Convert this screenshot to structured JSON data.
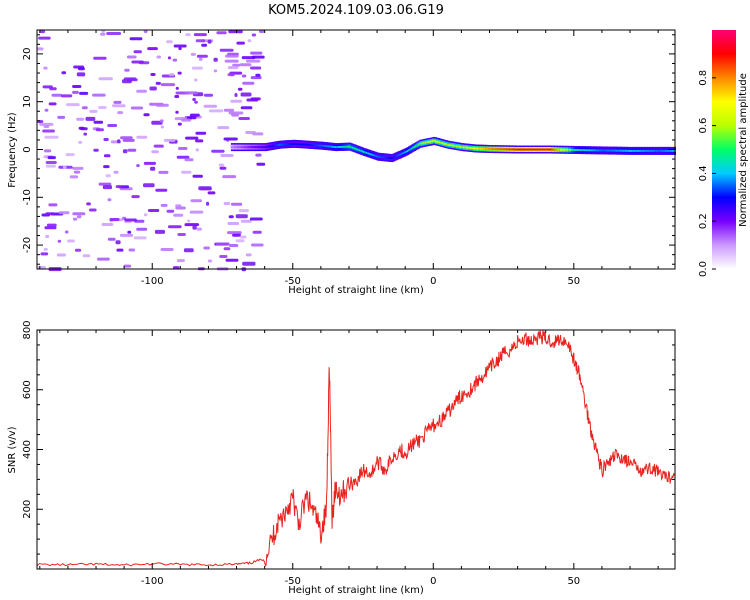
{
  "figure_title": "KOM5.2024.109.03.06.G19",
  "chart_data": [
    {
      "type": "heatmap",
      "title": "",
      "xlabel": "Height of straight line (km)",
      "ylabel": "Frequency (Hz)",
      "xlim": [
        -141,
        86
      ],
      "ylim": [
        -25,
        25
      ],
      "x_ticks": [
        -100,
        -50,
        0,
        50
      ],
      "y_ticks": [
        -20,
        -10,
        0,
        10,
        20
      ],
      "colorbar": {
        "label": "Normalized spectral amplitude",
        "range": [
          0.0,
          1.0
        ],
        "ticks": [
          "0.0",
          "0.2",
          "0.4",
          "0.6",
          "0.8"
        ],
        "colormap": [
          "#ffffff",
          "#cc99ff",
          "#7700ff",
          "#0000ff",
          "#00ccff",
          "#00ff66",
          "#bbff00",
          "#ffff00",
          "#ff8800",
          "#ff0000",
          "#ff0077"
        ]
      },
      "noise_region_x": [
        -141,
        -62
      ],
      "noise_level": 0.15,
      "ridge": {
        "x": [
          -72,
          -60,
          -55,
          -50,
          -45,
          -40,
          -35,
          -30,
          -25,
          -20,
          -15,
          -10,
          -5,
          0,
          5,
          10,
          15,
          20,
          30,
          40,
          50,
          60,
          70,
          80,
          86
        ],
        "frequency": [
          0.5,
          0.5,
          1.0,
          1.2,
          1.0,
          0.8,
          0.5,
          0.6,
          -0.5,
          -1.5,
          -1.8,
          -0.5,
          1.2,
          1.8,
          1.0,
          0.5,
          0.2,
          0.1,
          0.0,
          0.0,
          -0.1,
          -0.2,
          -0.3,
          -0.3,
          -0.3
        ],
        "amplitude": [
          0.12,
          0.25,
          0.35,
          0.3,
          0.3,
          0.35,
          0.4,
          0.5,
          0.45,
          0.35,
          0.3,
          0.4,
          0.55,
          0.65,
          0.6,
          0.6,
          0.7,
          0.8,
          0.9,
          0.95,
          0.45,
          0.35,
          0.4,
          0.35,
          0.4
        ]
      }
    },
    {
      "type": "line",
      "title": "",
      "xlabel": "Height of straight line (km)",
      "ylabel": "SNR (v/v)",
      "xlim": [
        -141,
        86
      ],
      "ylim": [
        0,
        800
      ],
      "x_ticks": [
        -100,
        -50,
        0,
        50
      ],
      "y_ticks": [
        200,
        400,
        600,
        800
      ],
      "series": [
        {
          "color": "#e8231e",
          "x": [
            -141,
            -130,
            -120,
            -110,
            -100,
            -90,
            -80,
            -70,
            -65,
            -60,
            -57,
            -55,
            -52,
            -50,
            -48,
            -45,
            -42,
            -40,
            -38,
            -37,
            -36,
            -35,
            -33,
            -30,
            -27,
            -25,
            -22,
            -20,
            -17,
            -15,
            -12,
            -10,
            -7,
            -5,
            -2,
            0,
            3,
            5,
            8,
            10,
            13,
            15,
            18,
            20,
            23,
            25,
            28,
            30,
            33,
            35,
            38,
            40,
            43,
            45,
            48,
            50,
            52,
            54,
            56,
            58,
            60,
            63,
            65,
            68,
            70,
            73,
            75,
            78,
            80,
            83,
            86
          ],
          "values": [
            15,
            14,
            16,
            13,
            17,
            15,
            14,
            16,
            20,
            35,
            110,
            160,
            200,
            240,
            150,
            240,
            180,
            120,
            200,
            700,
            150,
            270,
            250,
            280,
            300,
            330,
            320,
            360,
            330,
            370,
            400,
            390,
            420,
            430,
            460,
            480,
            500,
            520,
            560,
            580,
            600,
            620,
            650,
            670,
            700,
            720,
            740,
            760,
            770,
            765,
            780,
            770,
            760,
            770,
            760,
            700,
            650,
            560,
            470,
            400,
            330,
            360,
            380,
            370,
            350,
            340,
            330,
            340,
            320,
            300,
            320
          ]
        }
      ]
    }
  ]
}
